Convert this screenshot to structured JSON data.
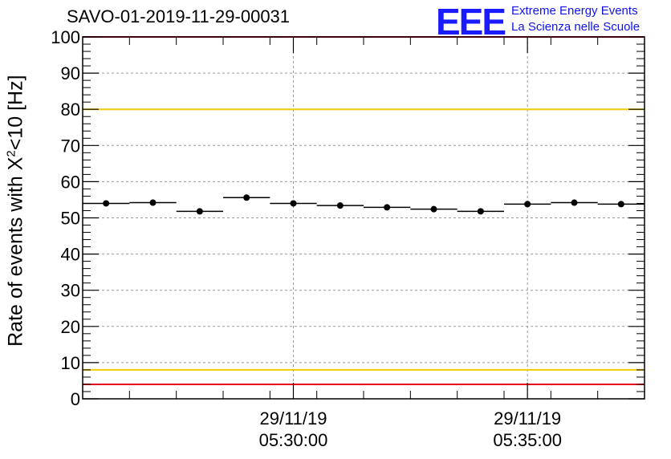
{
  "header": {
    "title": "SAVO-01-2019-11-29-00031",
    "logo_mark": "EEE",
    "logo_line1": "Extreme Energy Events",
    "logo_line2": "La Scienza nelle Scuole"
  },
  "chart_data": {
    "type": "scatter",
    "title": "SAVO-01-2019-11-29-00031",
    "ylabel_prefix": "Rate of events with X",
    "ylabel_sup": "2",
    "ylabel_suffix": "<10 [Hz]",
    "ylim": [
      0,
      100
    ],
    "yticks": [
      0,
      10,
      20,
      30,
      40,
      50,
      60,
      70,
      80,
      90,
      100
    ],
    "xlim_minutes": [
      0,
      12
    ],
    "xticks": [
      {
        "t": 4.5,
        "line1": "29/11/19",
        "line2": "05:30:00"
      },
      {
        "t": 9.5,
        "line1": "29/11/19",
        "line2": "05:35:00"
      }
    ],
    "grid": true,
    "reference_lines": [
      {
        "value": 80,
        "color": "#f2cc00"
      },
      {
        "value": 8,
        "color": "#f2cc00"
      },
      {
        "value": 4,
        "color": "#e8001c"
      },
      {
        "value": 100,
        "color": "#e8001c"
      }
    ],
    "bin_width_minutes": 1,
    "points": [
      {
        "t": 0.5,
        "y": 54.0
      },
      {
        "t": 1.5,
        "y": 54.2
      },
      {
        "t": 2.5,
        "y": 51.8
      },
      {
        "t": 3.5,
        "y": 55.6
      },
      {
        "t": 4.5,
        "y": 54.0
      },
      {
        "t": 5.5,
        "y": 53.4
      },
      {
        "t": 6.5,
        "y": 52.9
      },
      {
        "t": 7.5,
        "y": 52.4
      },
      {
        "t": 8.5,
        "y": 51.8
      },
      {
        "t": 9.5,
        "y": 53.8
      },
      {
        "t": 10.5,
        "y": 54.2
      },
      {
        "t": 11.5,
        "y": 53.8
      }
    ]
  }
}
